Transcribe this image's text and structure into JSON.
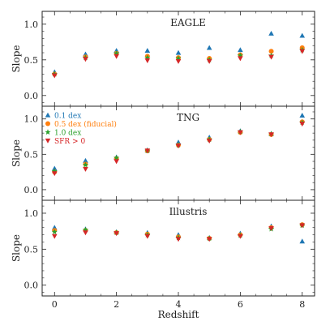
{
  "chart_data": {
    "type": "scatter",
    "xlabel": "Redshift",
    "ylabel": "Slope",
    "xlim": [
      -0.4,
      8.4
    ],
    "ylim": [
      -0.15,
      1.18
    ],
    "x_ticks": [
      "0",
      "2",
      "4",
      "6",
      "8"
    ],
    "y_ticks": [
      "0.0",
      "0.5",
      "1.0"
    ],
    "legend": {
      "placement": "top-left",
      "panel": "TNG"
    },
    "colors": {
      "0.1 dex": "#1f77b4",
      "0.5 dex (fiducial)": "#ff7f0e",
      "1.0 dex": "#2ca02c",
      "SFR > 0": "#d62728"
    },
    "markers": {
      "0.1 dex": "triangle-up",
      "0.5 dex (fiducial)": "circle",
      "1.0 dex": "star",
      "SFR > 0": "triangle-down"
    },
    "x": [
      0,
      1,
      2,
      3,
      4,
      5,
      6,
      7,
      8
    ],
    "panels": [
      {
        "title": "EAGLE",
        "series": [
          {
            "name": "0.1 dex",
            "values": [
              0.33,
              0.58,
              0.63,
              0.63,
              0.6,
              0.67,
              0.64,
              0.87,
              0.84
            ]
          },
          {
            "name": "0.5 dex (fiducial)",
            "values": [
              0.3,
              0.54,
              0.59,
              0.55,
              0.53,
              0.52,
              0.57,
              0.62,
              0.67
            ]
          },
          {
            "name": "1.0 dex",
            "values": [
              0.3,
              0.53,
              0.59,
              0.53,
              0.52,
              0.5,
              0.56,
              0.56,
              0.64
            ]
          },
          {
            "name": "SFR > 0",
            "values": [
              0.28,
              0.51,
              0.55,
              0.49,
              0.48,
              0.48,
              0.52,
              0.54,
              0.62
            ]
          }
        ]
      },
      {
        "title": "TNG",
        "series": [
          {
            "name": "0.1 dex",
            "values": [
              0.3,
              0.41,
              0.46,
              0.56,
              0.67,
              0.74,
              0.83,
              0.79,
              1.05
            ]
          },
          {
            "name": "0.5 dex (fiducial)",
            "values": [
              0.25,
              0.36,
              0.44,
              0.55,
              0.63,
              0.71,
              0.81,
              0.78,
              0.96
            ]
          },
          {
            "name": "1.0 dex",
            "values": [
              0.26,
              0.35,
              0.45,
              0.55,
              0.63,
              0.71,
              0.82,
              0.79,
              0.95
            ]
          },
          {
            "name": "SFR > 0",
            "values": [
              0.23,
              0.29,
              0.4,
              0.55,
              0.62,
              0.69,
              0.81,
              0.78,
              0.93
            ]
          }
        ]
      },
      {
        "title": "Illustris",
        "series": [
          {
            "name": "0.1 dex",
            "values": [
              0.8,
              0.78,
              0.74,
              0.73,
              0.7,
              0.66,
              0.72,
              0.82,
              0.61
            ]
          },
          {
            "name": "0.5 dex (fiducial)",
            "values": [
              0.76,
              0.76,
              0.73,
              0.71,
              0.67,
              0.65,
              0.7,
              0.8,
              0.84
            ]
          },
          {
            "name": "1.0 dex",
            "values": [
              0.74,
              0.77,
              0.73,
              0.7,
              0.66,
              0.65,
              0.69,
              0.78,
              0.83
            ]
          },
          {
            "name": "SFR > 0",
            "values": [
              0.68,
              0.73,
              0.72,
              0.68,
              0.64,
              0.64,
              0.68,
              0.79,
              0.83
            ]
          }
        ]
      }
    ]
  }
}
